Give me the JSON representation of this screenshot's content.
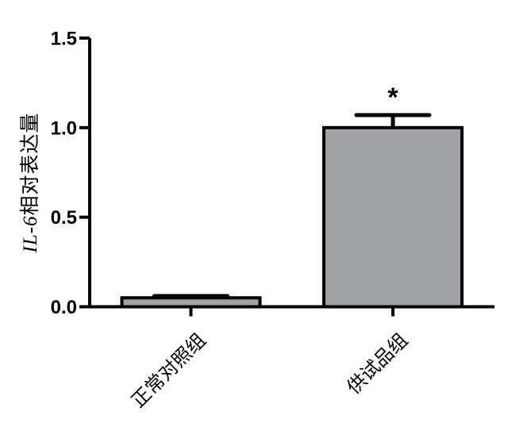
{
  "chart_data": {
    "type": "bar",
    "title": "",
    "categories": [
      "正常对照组",
      "供试品组"
    ],
    "values": [
      0.05,
      1.0
    ],
    "errors_up": [
      0.01,
      0.07
    ],
    "significance_labels": [
      "",
      "*"
    ],
    "ylabel_italic": "IL-6",
    "ylabel_rest": "相对表达量",
    "xlabel": "",
    "ytick_labels": [
      "0.0",
      "0.5",
      "1.0",
      "1.5"
    ],
    "ytick_values": [
      0.0,
      0.5,
      1.0,
      1.5
    ],
    "ylim": [
      0,
      1.5
    ],
    "grid": false,
    "legend": "none",
    "bar_fill_color": "#a1a2a6",
    "bar_border_color": "#000000",
    "axis_color": "#000000",
    "error_bar_color": "#000000",
    "text_color": "#000000",
    "background_color": "#ffffff"
  }
}
